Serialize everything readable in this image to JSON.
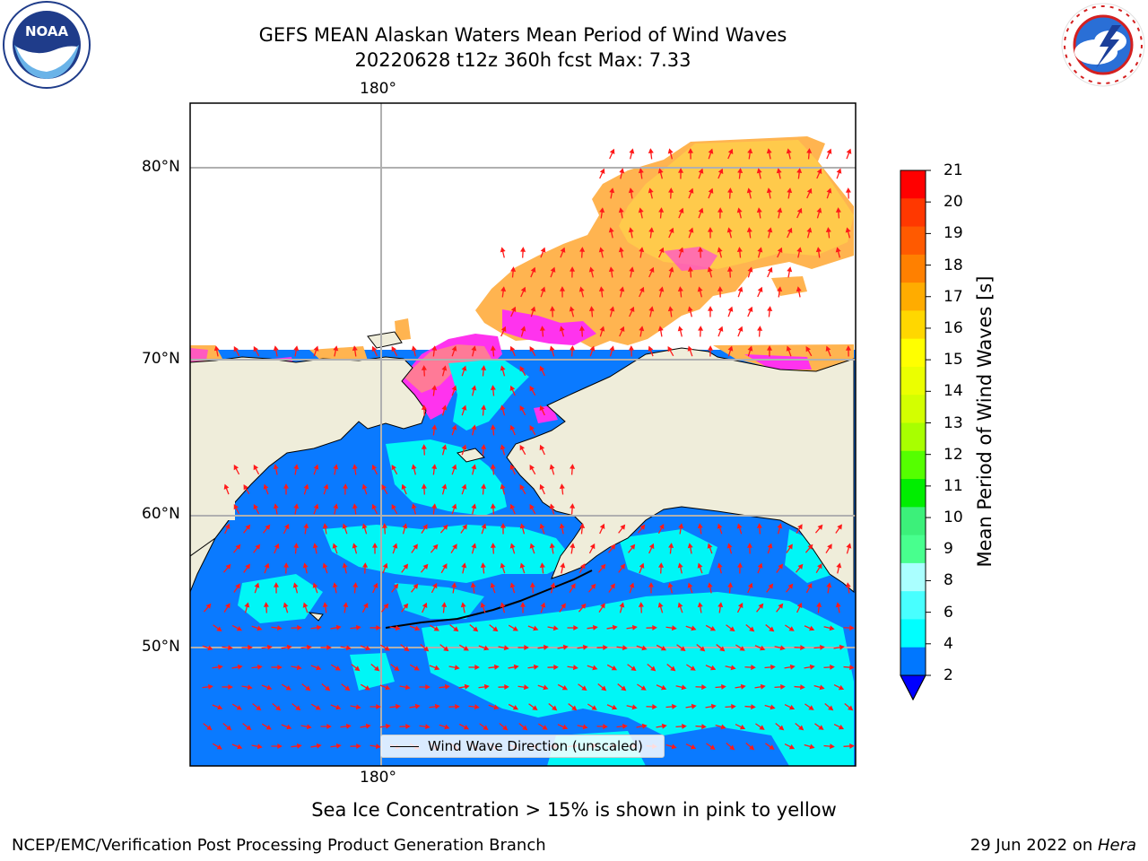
{
  "header": {
    "title_line1": "GEFS MEAN Alaskan Waters Mean Period of Wind Waves",
    "title_line2": "20220628 t12z 360h fcst   Max: 7.33"
  },
  "logos": {
    "left": "NOAA",
    "left_ring_text": "NATIONAL OCEANIC AND ATMOSPHERIC ADMINISTRATION · U.S. DEPARTMENT OF COMMERCE",
    "right_ring_text": "NATIONAL WEATHER SERVICE"
  },
  "map": {
    "lon_label_top": "180°",
    "lon_label_bottom": "180°",
    "lat_labels": [
      "80°N",
      "70°N",
      "60°N",
      "50°N"
    ],
    "legend_label": "Wind Wave Direction (unscaled)",
    "colors": {
      "land": "#efedda",
      "ice_pink": "#ff33ee",
      "ice_orange": "#ffb450",
      "ice_yellow": "#ffd24a",
      "wave_2_4": "#0a7aff",
      "wave_4_6": "#00f6f6",
      "arrow": "#ff0000"
    }
  },
  "colorbar": {
    "label": "Mean Period of Wind Waves [s]",
    "ticks": [
      "21",
      "20",
      "19",
      "18",
      "17",
      "16",
      "15",
      "14",
      "13",
      "12",
      "11",
      "10",
      "9",
      "8",
      "6",
      "4",
      "2"
    ],
    "colors": [
      "#ff0000",
      "#ff3800",
      "#ff5a00",
      "#ff8000",
      "#ffac00",
      "#ffd700",
      "#ffff00",
      "#ebff00",
      "#d3ff00",
      "#a8ff00",
      "#55ff00",
      "#00ee00",
      "#3cf07a",
      "#48ff8e",
      "#aaffff",
      "#48ffff",
      "#00ffff",
      "#0077ff"
    ],
    "under_color": "#0000ff"
  },
  "footer": {
    "note": "Sea Ice Concentration > 15% is shown in pink to yellow",
    "left": "NCEP/EMC/Verification Post Processing Product Generation Branch",
    "right_prefix": "29 Jun 2022 on ",
    "right_italic": "Hera"
  }
}
